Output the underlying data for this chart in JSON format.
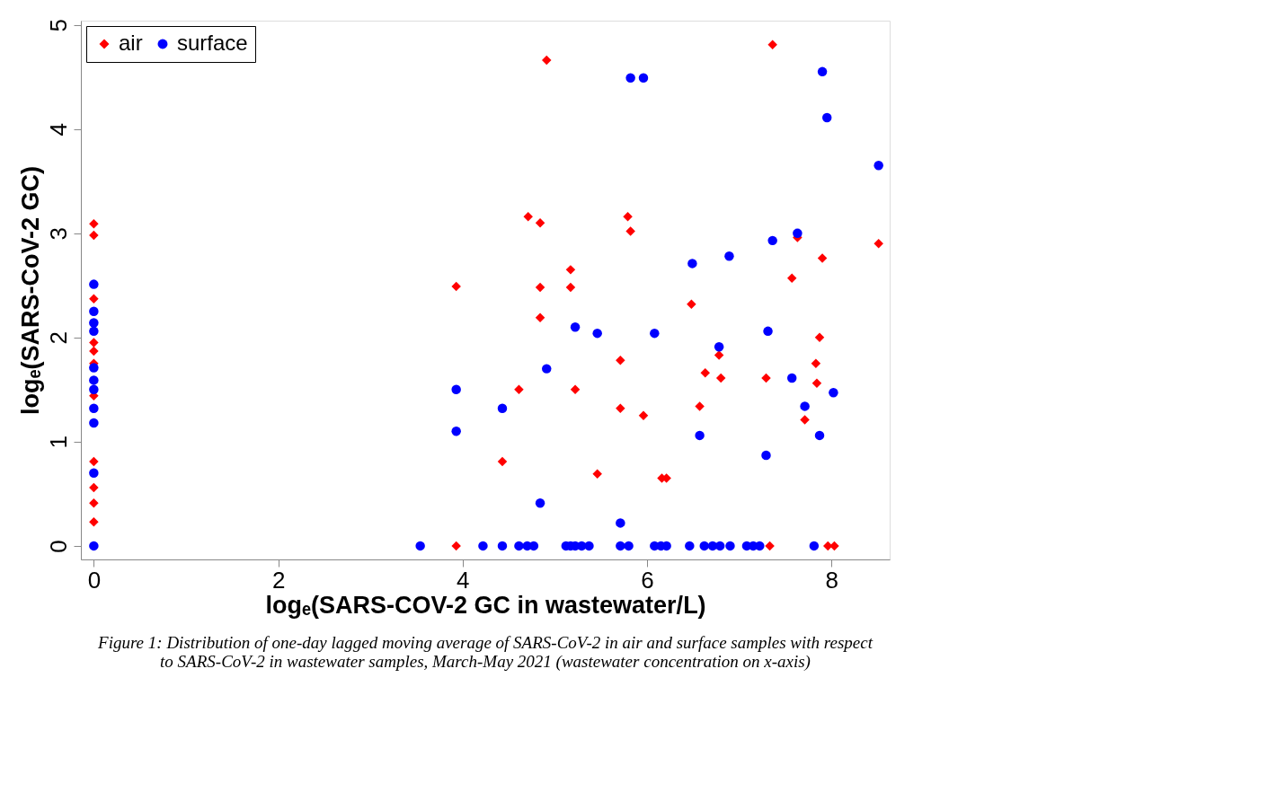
{
  "chart_data": {
    "type": "scatter",
    "xlabel": "logₑ(SARS-COV-2 GC in wastewater/L)",
    "ylabel": "logₑ(SARS-CoV-2 GC)",
    "annotations": [
      "Figure 1: Distribution of one-day lagged moving average of SARS-CoV-2 in air and surface samples with respect to SARS-CoV-2 in wastewater samples, March-May 2021 (wastewater concentration on x-axis)"
    ],
    "xlim": [
      -0.14,
      8.63
    ],
    "ylim": [
      -0.13,
      5.04
    ],
    "xticks": [
      0,
      2,
      4,
      6,
      8
    ],
    "yticks": [
      0,
      1,
      2,
      3,
      4,
      5
    ],
    "grid": false,
    "legend": "top left",
    "series": [
      {
        "name": "air",
        "color": "#ff0000",
        "marker": "diamond",
        "x": [
          0,
          0,
          0,
          0,
          0,
          0,
          0,
          0,
          0,
          0,
          0,
          4.91,
          4.71,
          4.84,
          5.79,
          5.82,
          3.93,
          4.84,
          5.17,
          5.17,
          4.84,
          5.71,
          4.61,
          5.22,
          5.71,
          5.96,
          4.43,
          5.46,
          3.93,
          7.36,
          7.63,
          8.51,
          7.9,
          7.57,
          6.48,
          7.87,
          6.78,
          7.83,
          6.63,
          6.8,
          7.29,
          7.84,
          6.57,
          7.71,
          6.16,
          6.21,
          7.33,
          7.96,
          8.03
        ],
        "values": [
          3.09,
          2.98,
          2.37,
          1.95,
          1.87,
          1.75,
          1.44,
          0.81,
          0.56,
          0.41,
          0.23,
          4.66,
          3.16,
          3.1,
          3.16,
          3.02,
          2.49,
          2.48,
          2.65,
          2.48,
          2.19,
          1.78,
          1.5,
          1.5,
          1.32,
          1.25,
          0.81,
          0.69,
          0,
          4.81,
          2.96,
          2.9,
          2.76,
          2.57,
          2.32,
          2.0,
          1.83,
          1.75,
          1.66,
          1.61,
          1.61,
          1.56,
          1.34,
          1.21,
          0.65,
          0.65,
          0,
          0,
          0
        ]
      },
      {
        "name": "surface",
        "color": "#0000ff",
        "marker": "circle",
        "x": [
          0,
          0,
          0,
          0,
          0,
          0,
          0,
          0,
          0,
          0,
          0,
          5.82,
          5.96,
          5.22,
          5.46,
          6.08,
          4.91,
          3.93,
          4.43,
          3.93,
          4.84,
          5.71,
          7.9,
          7.95,
          8.51,
          7.63,
          7.36,
          6.89,
          6.49,
          7.31,
          6.78,
          7.57,
          8.02,
          7.71,
          6.57,
          7.87,
          7.29,
          3.54,
          4.22,
          4.43,
          4.61,
          4.7,
          4.77,
          5.12,
          5.17,
          5.22,
          5.29,
          5.37,
          5.71,
          5.8,
          6.08,
          6.15,
          6.21,
          6.46,
          6.62,
          6.71,
          6.79,
          6.9,
          7.08,
          7.15,
          7.22,
          7.81
        ],
        "values": [
          2.51,
          2.25,
          2.14,
          2.06,
          1.71,
          1.59,
          1.5,
          1.32,
          1.18,
          0.7,
          0,
          4.49,
          4.49,
          2.1,
          2.04,
          2.04,
          1.7,
          1.5,
          1.32,
          1.1,
          0.41,
          0.22,
          4.55,
          4.11,
          3.65,
          3.0,
          2.93,
          2.78,
          2.71,
          2.06,
          1.91,
          1.61,
          1.47,
          1.34,
          1.06,
          1.06,
          0.87,
          0,
          0,
          0,
          0,
          0,
          0,
          0,
          0,
          0,
          0,
          0,
          0,
          0,
          0,
          0,
          0,
          0,
          0,
          0,
          0,
          0,
          0,
          0,
          0,
          0
        ]
      }
    ]
  }
}
